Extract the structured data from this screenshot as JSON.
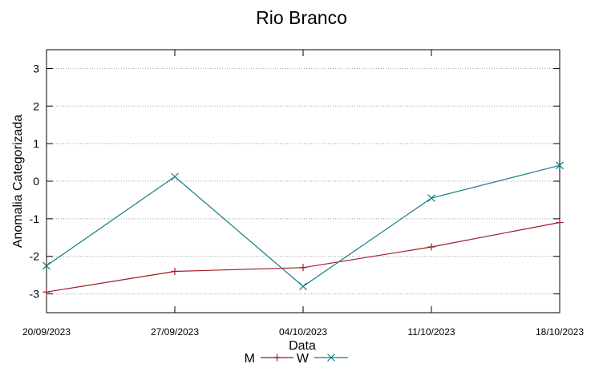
{
  "chart_data": {
    "type": "line",
    "title": "Rio Branco",
    "xlabel": "Data",
    "ylabel": "Anomalia Categorizada",
    "categories": [
      "20/09/2023",
      "27/09/2023",
      "04/10/2023",
      "11/10/2023",
      "18/10/2023"
    ],
    "ylim": [
      -3.5,
      3.5
    ],
    "yticks": [
      "-3",
      "-2",
      "-1",
      "0",
      "1",
      "2",
      "3"
    ],
    "grid": true,
    "legend_position": "bottom-center",
    "series": [
      {
        "name": "M",
        "color": "#9e1b24",
        "marker": "plus",
        "values": [
          -2.95,
          -2.4,
          -2.3,
          -1.75,
          -1.1
        ]
      },
      {
        "name": "W",
        "color": "#147d86",
        "marker": "x",
        "values": [
          -2.25,
          0.12,
          -2.8,
          -0.45,
          0.42
        ]
      }
    ]
  }
}
